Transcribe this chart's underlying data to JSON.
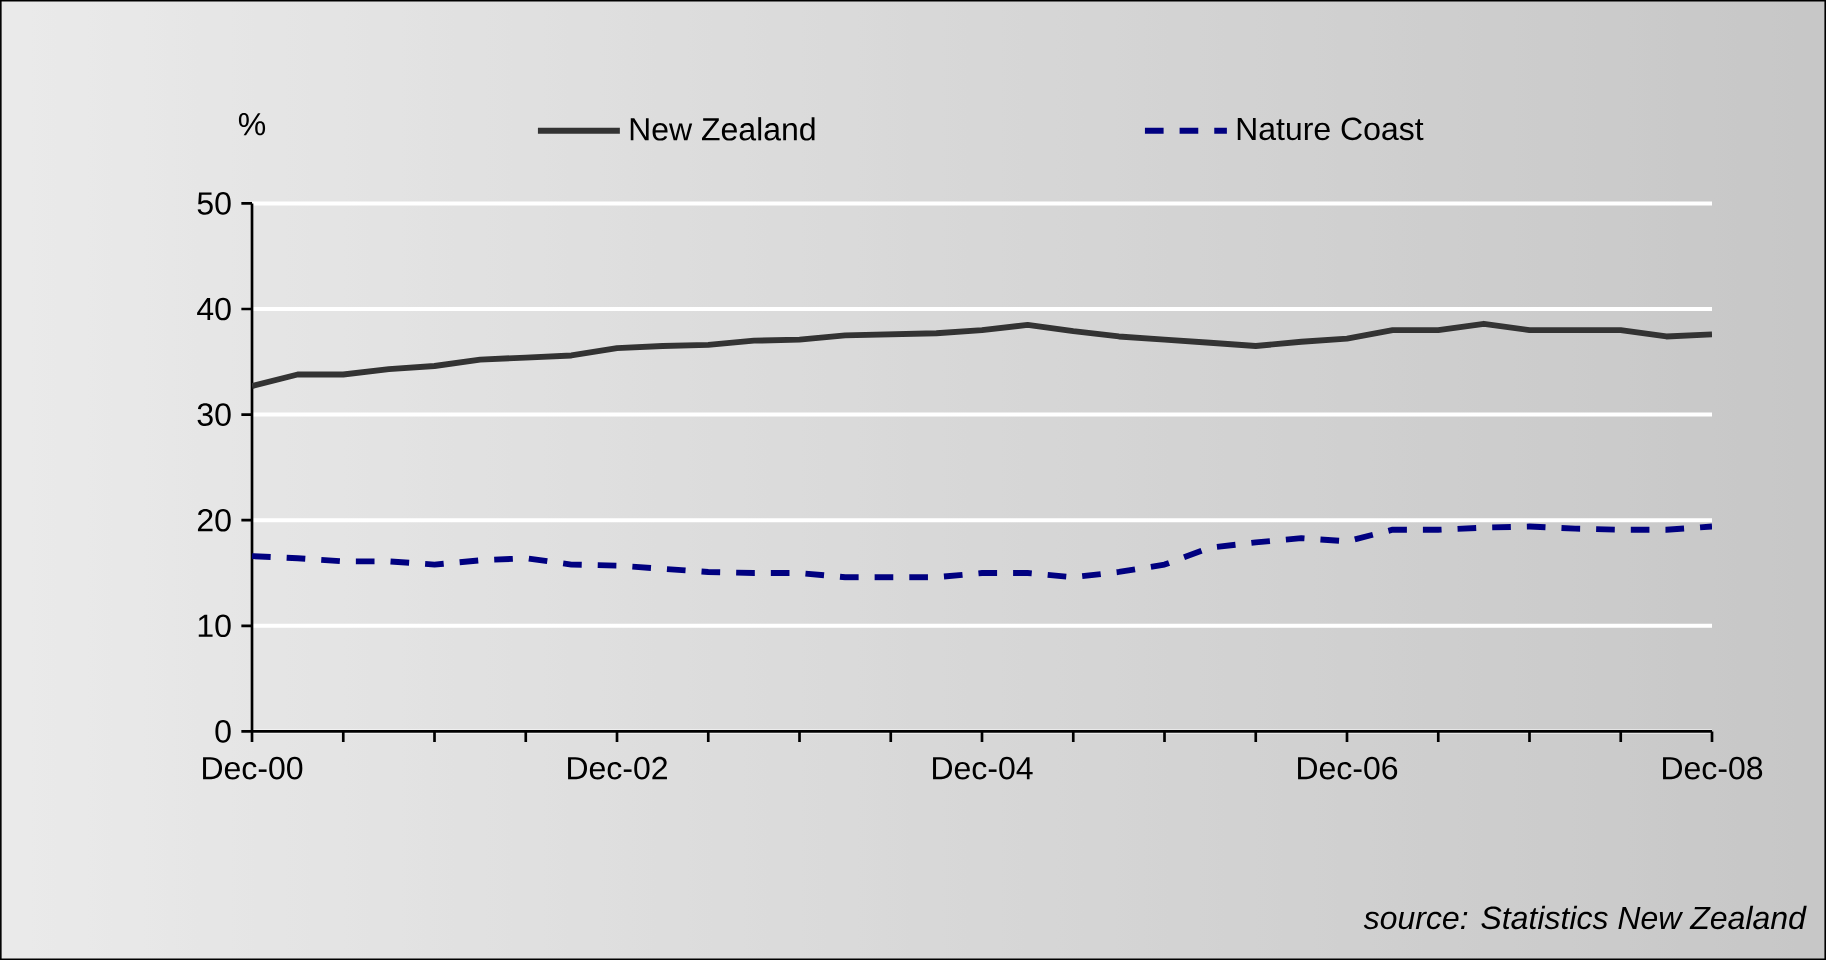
{
  "chart_data": {
    "type": "line",
    "ylabel": "%",
    "legend": "top",
    "grid": "y",
    "x": [
      "2000-12",
      "2001-03",
      "2001-06",
      "2001-09",
      "2001-12",
      "2002-03",
      "2002-06",
      "2002-09",
      "2002-12",
      "2003-03",
      "2003-06",
      "2003-09",
      "2003-12",
      "2004-03",
      "2004-06",
      "2004-09",
      "2004-12",
      "2005-03",
      "2005-06",
      "2005-09",
      "2005-12",
      "2006-03",
      "2006-06",
      "2006-09",
      "2006-12",
      "2007-03",
      "2007-06",
      "2007-09",
      "2007-12",
      "2008-03",
      "2008-06",
      "2008-09",
      "2008-12"
    ],
    "series": [
      {
        "name": "New Zealand",
        "color": "#333333",
        "line_style": "solid",
        "values": [
          32.7,
          33.8,
          33.8,
          34.3,
          34.6,
          35.2,
          35.4,
          35.6,
          36.3,
          36.5,
          36.6,
          37.0,
          37.1,
          37.5,
          37.6,
          37.7,
          38.0,
          38.5,
          37.9,
          37.4,
          37.1,
          36.8,
          36.5,
          36.9,
          37.2,
          38.0,
          38.0,
          38.6,
          38.0,
          38.0,
          38.0,
          37.4,
          37.6
        ]
      },
      {
        "name": "Nature Coast",
        "color": "#000080",
        "line_style": "dashed",
        "values": [
          16.6,
          16.4,
          16.1,
          16.1,
          15.8,
          16.2,
          16.4,
          15.8,
          15.7,
          15.4,
          15.1,
          15.0,
          15.0,
          14.6,
          14.6,
          14.6,
          15.0,
          15.0,
          14.6,
          15.1,
          15.8,
          17.4,
          17.9,
          18.3,
          18.0,
          19.1,
          19.1,
          19.3,
          19.4,
          19.2,
          19.1,
          19.1,
          19.4
        ]
      }
    ],
    "xlim": [
      "2000-12",
      "2008-12"
    ],
    "xticks": [
      {
        "value": "2000-12",
        "label": "Dec-00"
      },
      {
        "value": "2001-06",
        "label": null
      },
      {
        "value": "2001-12",
        "label": null
      },
      {
        "value": "2002-06",
        "label": null
      },
      {
        "value": "2002-12",
        "label": "Dec-02"
      },
      {
        "value": "2003-06",
        "label": null
      },
      {
        "value": "2003-12",
        "label": null
      },
      {
        "value": "2004-06",
        "label": null
      },
      {
        "value": "2004-12",
        "label": "Dec-04"
      },
      {
        "value": "2005-06",
        "label": null
      },
      {
        "value": "2005-12",
        "label": null
      },
      {
        "value": "2006-06",
        "label": null
      },
      {
        "value": "2006-12",
        "label": "Dec-06"
      },
      {
        "value": "2007-06",
        "label": null
      },
      {
        "value": "2007-12",
        "label": null
      },
      {
        "value": "2008-06",
        "label": null
      },
      {
        "value": "2008-12",
        "label": "Dec-08"
      }
    ],
    "ylim": [
      0,
      50
    ],
    "yticks": [
      0,
      10,
      20,
      30,
      40,
      50
    ],
    "annotations": [
      "source: Statistics New Zealand"
    ]
  }
}
